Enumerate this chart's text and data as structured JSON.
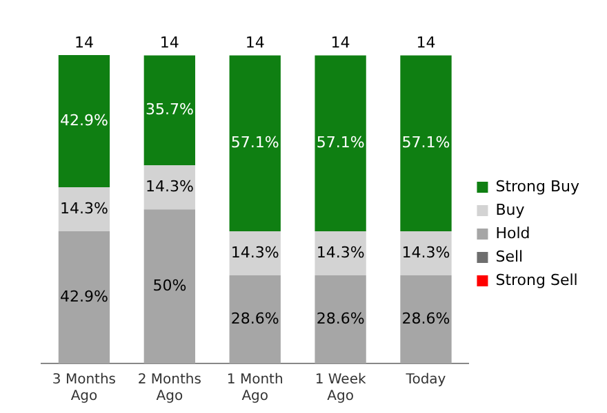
{
  "chart_data": {
    "type": "bar",
    "stacked": true,
    "categories": [
      "3 Months Ago",
      "2 Months Ago",
      "1 Month Ago",
      "1 Week Ago",
      "Today"
    ],
    "series": [
      {
        "name": "Strong Sell",
        "color": "#ff0000",
        "values": [
          0,
          0,
          0,
          0,
          0
        ],
        "value_labels": [
          null,
          null,
          null,
          null,
          null
        ]
      },
      {
        "name": "Sell",
        "color": "#6e6e6e",
        "values": [
          0,
          0,
          0,
          0,
          0
        ],
        "value_labels": [
          null,
          null,
          null,
          null,
          null
        ]
      },
      {
        "name": "Hold",
        "color": "#a6a6a6",
        "values": [
          42.9,
          50,
          28.6,
          28.6,
          28.6
        ],
        "value_labels": [
          "42.9%",
          "50%",
          "28.6%",
          "28.6%",
          "28.6%"
        ]
      },
      {
        "name": "Buy",
        "color": "#d3d3d3",
        "values": [
          14.3,
          14.3,
          14.3,
          14.3,
          14.3
        ],
        "value_labels": [
          "14.3%",
          "14.3%",
          "14.3%",
          "14.3%",
          "14.3%"
        ]
      },
      {
        "name": "Strong Buy",
        "color": "#0f7f12",
        "values": [
          42.9,
          35.7,
          57.1,
          57.1,
          57.1
        ],
        "value_labels": [
          "42.9%",
          "35.7%",
          "57.1%",
          "57.1%",
          "57.1%"
        ]
      }
    ],
    "annotations": [
      {
        "text": "14",
        "x": "3 Months Ago",
        "y": 100
      },
      {
        "text": "14",
        "x": "2 Months Ago",
        "y": 100
      },
      {
        "text": "14",
        "x": "1 Month Ago",
        "y": 100
      },
      {
        "text": "14",
        "x": "1 Week Ago",
        "y": 100
      },
      {
        "text": "14",
        "x": "Today",
        "y": 100
      }
    ],
    "legend": "right",
    "grid": false
  }
}
